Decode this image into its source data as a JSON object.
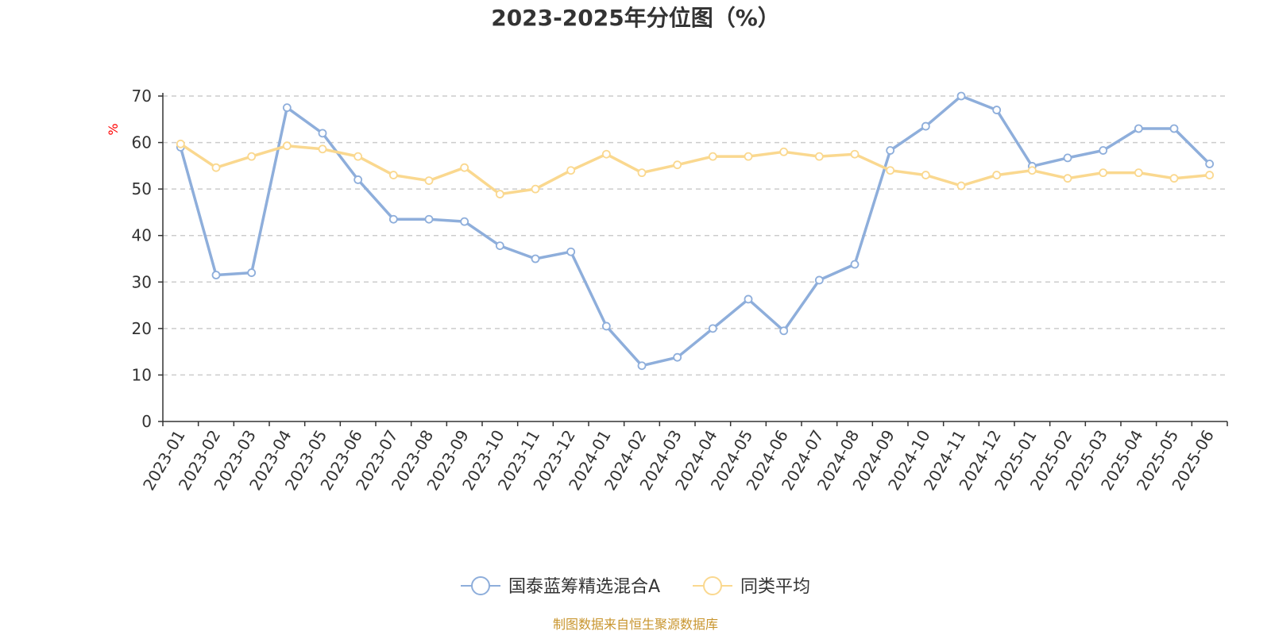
{
  "colors": {
    "series_main": "#8eaedb",
    "series_avg": "#fad88f",
    "grid": "#cccccc",
    "axis": "#333333",
    "ylabel": "#ff0000",
    "source": "#c8952e"
  },
  "source_text": "制图数据来自恒生聚源数据库",
  "chart_data": {
    "type": "line",
    "title": "2023-2025年分位图（%）",
    "xlabel": "",
    "ylabel": "%",
    "ylim": [
      0,
      70
    ],
    "yticks": [
      0,
      10,
      20,
      30,
      40,
      50,
      60,
      70
    ],
    "grid": true,
    "legend_position": "bottom-center",
    "categories": [
      "2023-01",
      "2023-02",
      "2023-03",
      "2023-04",
      "2023-05",
      "2023-06",
      "2023-07",
      "2023-08",
      "2023-09",
      "2023-10",
      "2023-11",
      "2023-12",
      "2024-01",
      "2024-02",
      "2024-03",
      "2024-04",
      "2024-05",
      "2024-06",
      "2024-07",
      "2024-08",
      "2024-09",
      "2024-10",
      "2024-11",
      "2024-12",
      "2025-01",
      "2025-02",
      "2025-03",
      "2025-04",
      "2025-05",
      "2025-06"
    ],
    "series": [
      {
        "name": "国泰蓝筹精选混合A",
        "color_key": "series_main",
        "values": [
          59.0,
          31.5,
          32.0,
          67.5,
          62.0,
          52.0,
          43.5,
          43.5,
          43.0,
          37.8,
          35.0,
          36.5,
          20.5,
          12.0,
          13.8,
          20.0,
          26.3,
          19.5,
          30.4,
          33.8,
          58.3,
          63.5,
          70.0,
          67.0,
          54.9,
          56.7,
          58.3,
          63.0,
          63.0,
          55.4
        ]
      },
      {
        "name": "同类平均",
        "color_key": "series_avg",
        "values": [
          59.7,
          54.6,
          57.0,
          59.3,
          58.6,
          57.0,
          53.0,
          51.8,
          54.6,
          48.9,
          50.0,
          54.0,
          57.5,
          53.5,
          55.2,
          57.0,
          57.0,
          58.0,
          57.0,
          57.5,
          54.0,
          53.0,
          50.7,
          53.0,
          54.0,
          52.3,
          53.5,
          53.5,
          52.3,
          53.0
        ]
      }
    ]
  }
}
